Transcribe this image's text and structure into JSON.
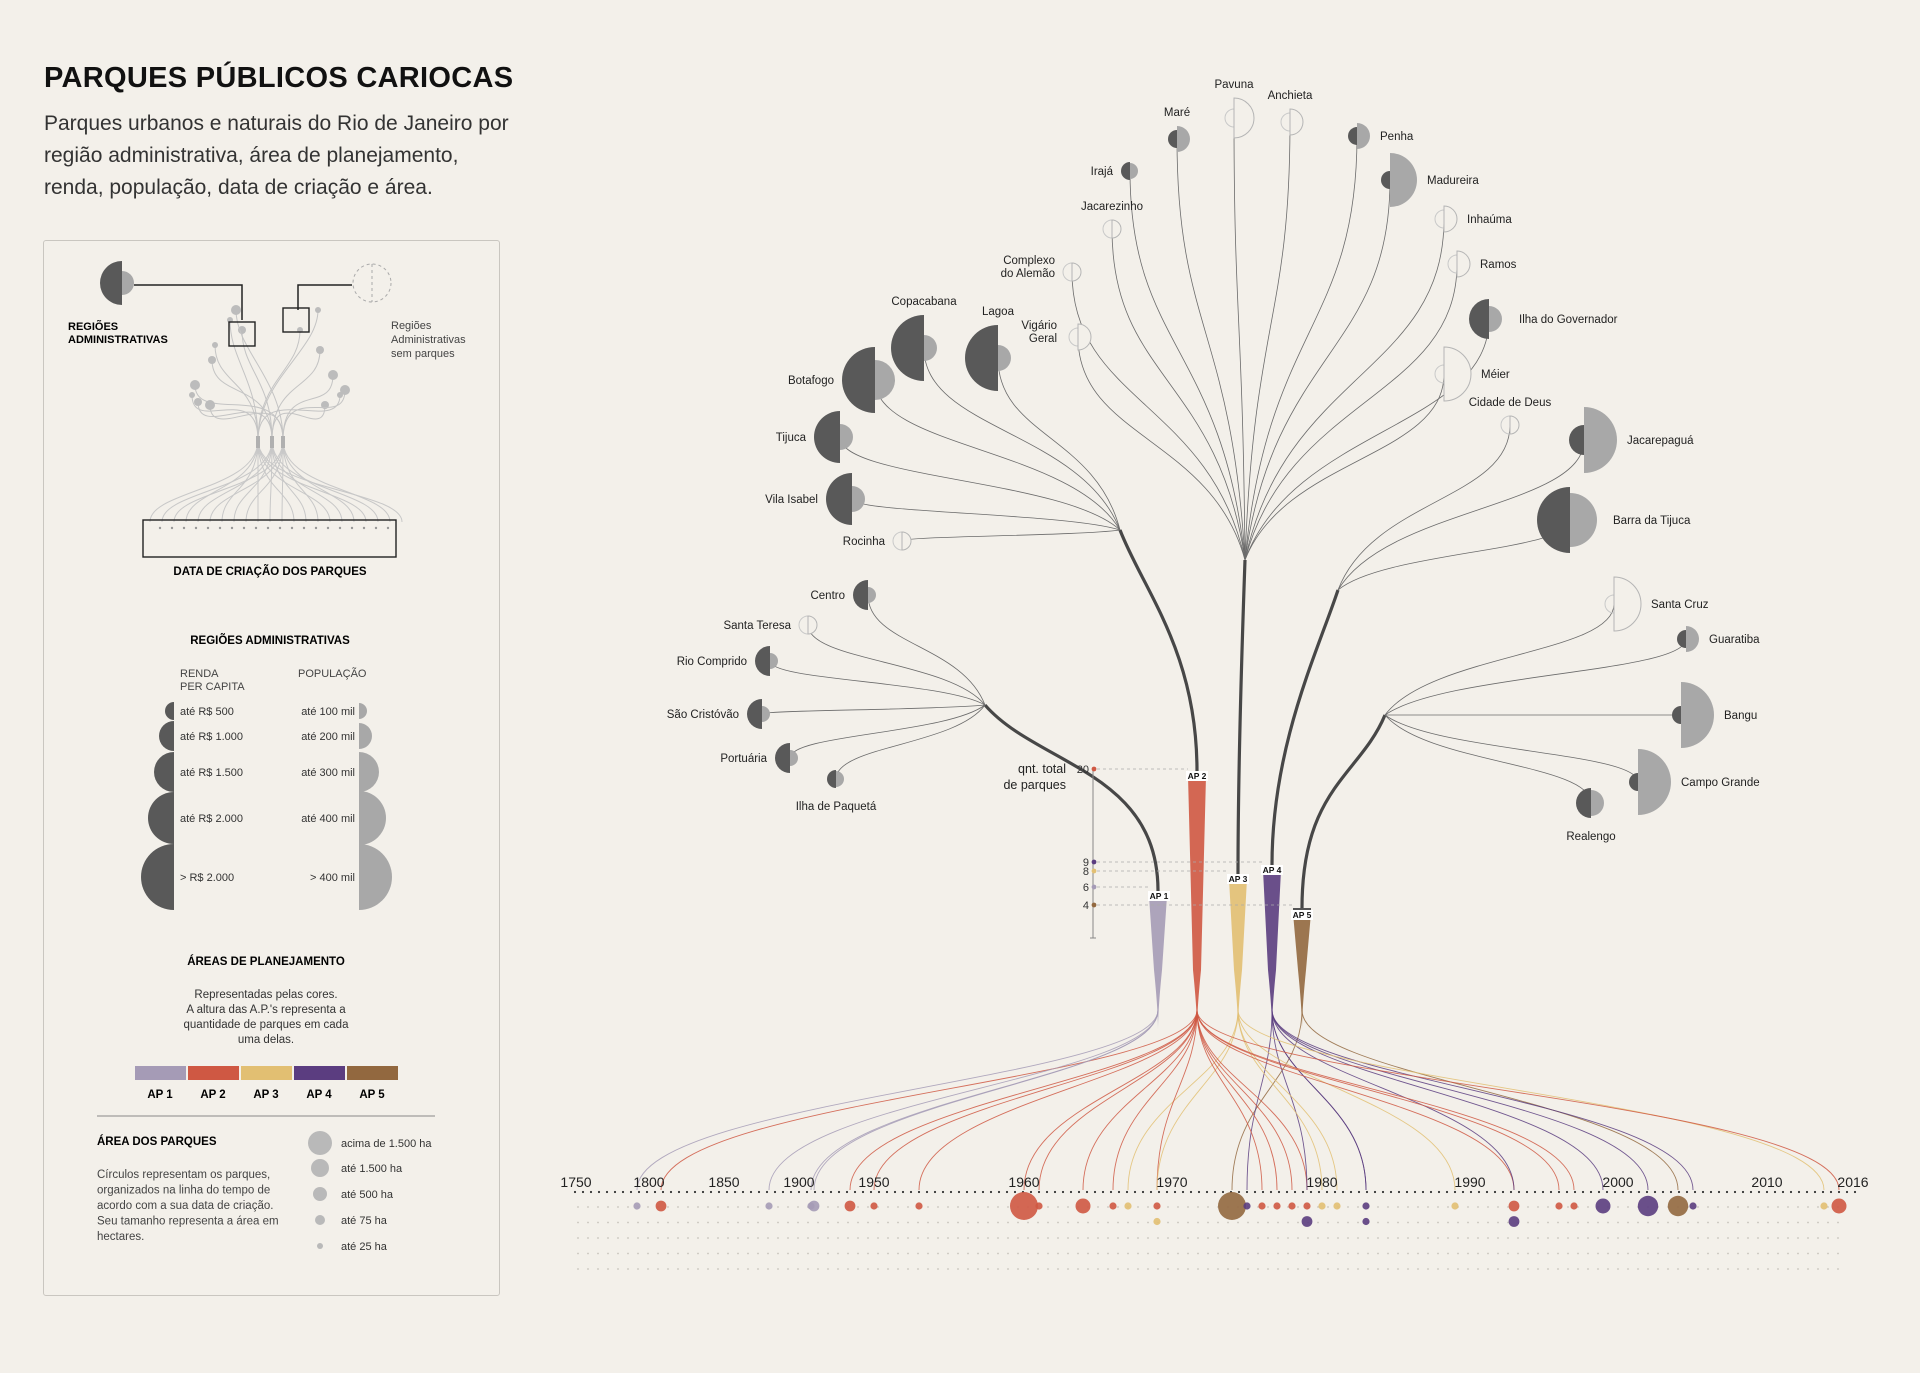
{
  "header": {
    "title": "PARQUES PÚBLICOS CARIOCAS",
    "subtitle": "Parques urbanos e naturais do Rio de Janeiro por região administrativa, área de planejamento, renda, população, data de criação e área."
  },
  "legend": {
    "ra_label_line1": "REGIÕES",
    "ra_label_line2": "ADMINISTRATIVAS",
    "no_parks_line1": "Regiões",
    "no_parks_line2": "Administrativas",
    "no_parks_line3": "sem parques",
    "creation_date_label": "DATA DE CRIAÇÃO DOS PARQUES",
    "ra_section_title": "REGIÕES ADMINISTRATIVAS",
    "income_header_line1": "RENDA",
    "income_header_line2": "PER CAPITA",
    "population_header": "POPULAÇÃO",
    "income_levels": [
      "até R$ 500",
      "até R$ 1.000",
      "até R$ 1.500",
      "até R$ 2.000",
      "> R$ 2.000"
    ],
    "population_levels": [
      "até 100 mil",
      "até 200 mil",
      "até 300 mil",
      "até 400 mil",
      "> 400 mil"
    ],
    "ap_section_title": "ÁREAS DE PLANEJAMENTO",
    "ap_desc_lines": [
      "Representadas pelas cores.",
      "A altura das A.P.'s representa a",
      "quantidade de parques em cada",
      "uma delas."
    ],
    "ap_labels": [
      "AP 1",
      "AP 2",
      "AP 3",
      "AP 4",
      "AP 5"
    ],
    "park_area_title": "ÁREA DOS PARQUES",
    "park_area_desc_lines": [
      "Círculos representam os parques,",
      "organizados na linha do tempo de",
      "acordo com a sua data de criação.",
      "Seu tamanho representa a área em",
      "hectares."
    ],
    "area_levels": [
      "acima de 1.500 ha",
      "até 1.500 ha",
      "até 500 ha",
      "até 75 ha",
      "até 25 ha"
    ]
  },
  "colors": {
    "ap1": "#a59bb6",
    "ap2": "#cf5843",
    "ap3": "#e2bf72",
    "ap4": "#5b3d80",
    "ap5": "#92683f",
    "income": "#595959",
    "population": "#a8a8a8",
    "background": "#f3f0ea"
  },
  "count_axis": {
    "label_line1": "qnt. total",
    "label_line2": "de parques",
    "ticks": [
      "20",
      "9",
      "8",
      "6",
      "4"
    ]
  },
  "timeline": {
    "year_labels": [
      "1750",
      "1800",
      "1850",
      "1900",
      "1950",
      "1960",
      "1970",
      "1980",
      "1990",
      "2000",
      "2010",
      "2016"
    ]
  },
  "chart_data": {
    "type": "tree-timeline",
    "planning_areas": [
      {
        "name": "AP 1",
        "parks": 6
      },
      {
        "name": "AP 2",
        "parks": 20
      },
      {
        "name": "AP 3",
        "parks": 8
      },
      {
        "name": "AP 4",
        "parks": 9
      },
      {
        "name": "AP 5",
        "parks": 4
      }
    ],
    "regions": [
      {
        "name": "Centro",
        "ap": "AP 1",
        "income_level": 2,
        "population_level": 1
      },
      {
        "name": "Santa Teresa",
        "ap": "AP 1",
        "income_level": 1,
        "population_level": 1,
        "no_parks": true
      },
      {
        "name": "Rio Comprido",
        "ap": "AP 1",
        "income_level": 2,
        "population_level": 1
      },
      {
        "name": "São Cristóvão",
        "ap": "AP 1",
        "income_level": 2,
        "population_level": 1
      },
      {
        "name": "Portuária",
        "ap": "AP 1",
        "income_level": 2,
        "population_level": 1
      },
      {
        "name": "Ilha de Paquetá",
        "ap": "AP 1",
        "income_level": 1,
        "population_level": 1
      },
      {
        "name": "Copacabana",
        "ap": "AP 2",
        "income_level": 5,
        "population_level": 2
      },
      {
        "name": "Lagoa",
        "ap": "AP 2",
        "income_level": 5,
        "population_level": 2
      },
      {
        "name": "Botafogo",
        "ap": "AP 2",
        "income_level": 5,
        "population_level": 3
      },
      {
        "name": "Tijuca",
        "ap": "AP 2",
        "income_level": 4,
        "population_level": 2
      },
      {
        "name": "Vila Isabel",
        "ap": "AP 2",
        "income_level": 4,
        "population_level": 2
      },
      {
        "name": "Rocinha",
        "ap": "AP 2",
        "income_level": 1,
        "population_level": 1,
        "no_parks": true
      },
      {
        "name": "Pavuna",
        "ap": "AP 3",
        "income_level": 1,
        "population_level": 3,
        "no_parks": true
      },
      {
        "name": "Anchieta",
        "ap": "AP 3",
        "income_level": 1,
        "population_level": 2,
        "no_parks": true
      },
      {
        "name": "Maré",
        "ap": "AP 3",
        "income_level": 1,
        "population_level": 2
      },
      {
        "name": "Penha",
        "ap": "AP 3",
        "income_level": 1,
        "population_level": 2
      },
      {
        "name": "Irajá",
        "ap": "AP 3",
        "income_level": 1,
        "population_level": 1
      },
      {
        "name": "Madureira",
        "ap": "AP 3",
        "income_level": 1,
        "population_level": 4
      },
      {
        "name": "Jacarezinho",
        "ap": "AP 3",
        "income_level": 1,
        "population_level": 1,
        "no_parks": true
      },
      {
        "name": "Inhaúma",
        "ap": "AP 3",
        "income_level": 1,
        "population_level": 2,
        "no_parks": true
      },
      {
        "name": "Complexo do Alemão",
        "ap": "AP 3",
        "income_level": 1,
        "population_level": 1,
        "no_parks": true
      },
      {
        "name": "Ramos",
        "ap": "AP 3",
        "income_level": 1,
        "population_level": 2,
        "no_parks": true
      },
      {
        "name": "Vigário Geral",
        "ap": "AP 3",
        "income_level": 1,
        "population_level": 2,
        "no_parks": true
      },
      {
        "name": "Ilha do Governador",
        "ap": "AP 3",
        "income_level": 3,
        "population_level": 2
      },
      {
        "name": "Méier",
        "ap": "AP 3",
        "income_level": 1,
        "population_level": 4,
        "no_parks": true
      },
      {
        "name": "Cidade de Deus",
        "ap": "AP 4",
        "income_level": 1,
        "population_level": 1,
        "no_parks": true
      },
      {
        "name": "Jacarepaguá",
        "ap": "AP 4",
        "income_level": 2,
        "population_level": 5
      },
      {
        "name": "Barra da Tijuca",
        "ap": "AP 4",
        "income_level": 5,
        "population_level": 4
      },
      {
        "name": "Santa Cruz",
        "ap": "AP 5",
        "income_level": 1,
        "population_level": 4,
        "no_parks": true
      },
      {
        "name": "Guaratiba",
        "ap": "AP 5",
        "income_level": 1,
        "population_level": 2
      },
      {
        "name": "Bangu",
        "ap": "AP 5",
        "income_level": 1,
        "population_level": 5
      },
      {
        "name": "Campo Grande",
        "ap": "AP 5",
        "income_level": 1,
        "population_level": 5
      },
      {
        "name": "Realengo",
        "ap": "AP 5",
        "income_level": 2,
        "population_level": 2
      }
    ],
    "parks": [
      {
        "ap": "AP 1",
        "year": 1792,
        "area_level": 1
      },
      {
        "ap": "AP 2",
        "year": 1808,
        "area_level": 2
      },
      {
        "ap": "AP 1",
        "year": 1880,
        "area_level": 1
      },
      {
        "ap": "AP 1",
        "year": 1908,
        "area_level": 1
      },
      {
        "ap": "AP 1",
        "year": 1910,
        "area_level": 2
      },
      {
        "ap": "AP 2",
        "year": 1934,
        "area_level": 2
      },
      {
        "ap": "AP 2",
        "year": 1950,
        "area_level": 1
      },
      {
        "ap": "AP 2",
        "year": 1953,
        "area_level": 1
      },
      {
        "ap": "AP 2",
        "year": 1960,
        "area_level": 5
      },
      {
        "ap": "AP 2",
        "year": 1961,
        "area_level": 1
      },
      {
        "ap": "AP 2",
        "year": 1964,
        "area_level": 3
      },
      {
        "ap": "AP 2",
        "year": 1966,
        "area_level": 1
      },
      {
        "ap": "AP 3",
        "year": 1967,
        "area_level": 1
      },
      {
        "ap": "AP 2",
        "year": 1969,
        "area_level": 1
      },
      {
        "ap": "AP 3",
        "year": 1969,
        "area_level": 1
      },
      {
        "ap": "AP 5",
        "year": 1974,
        "area_level": 5
      },
      {
        "ap": "AP 4",
        "year": 1975,
        "area_level": 1
      },
      {
        "ap": "AP 2",
        "year": 1976,
        "area_level": 1
      },
      {
        "ap": "AP 2",
        "year": 1977,
        "area_level": 1
      },
      {
        "ap": "AP 2",
        "year": 1978,
        "area_level": 1
      },
      {
        "ap": "AP 2",
        "year": 1979,
        "area_level": 1
      },
      {
        "ap": "AP 4",
        "year": 1979,
        "area_level": 2
      },
      {
        "ap": "AP 3",
        "year": 1980,
        "area_level": 1
      },
      {
        "ap": "AP 3",
        "year": 1981,
        "area_level": 1
      },
      {
        "ap": "AP 4",
        "year": 1983,
        "area_level": 1
      },
      {
        "ap": "AP 4",
        "year": 1983,
        "area_level": 1
      },
      {
        "ap": "AP 3",
        "year": 1989,
        "area_level": 1
      },
      {
        "ap": "AP 2",
        "year": 1993,
        "area_level": 2
      },
      {
        "ap": "AP 4",
        "year": 1993,
        "area_level": 2
      },
      {
        "ap": "AP 2",
        "year": 1996,
        "area_level": 1
      },
      {
        "ap": "AP 2",
        "year": 1997,
        "area_level": 1
      },
      {
        "ap": "AP 4",
        "year": 1999,
        "area_level": 3
      },
      {
        "ap": "AP 4",
        "year": 2002,
        "area_level": 4
      },
      {
        "ap": "AP 5",
        "year": 2004,
        "area_level": 4
      },
      {
        "ap": "AP 4",
        "year": 2005,
        "area_level": 1
      },
      {
        "ap": "AP 3",
        "year": 2014,
        "area_level": 1
      },
      {
        "ap": "AP 2",
        "year": 2015,
        "area_level": 3
      }
    ]
  }
}
